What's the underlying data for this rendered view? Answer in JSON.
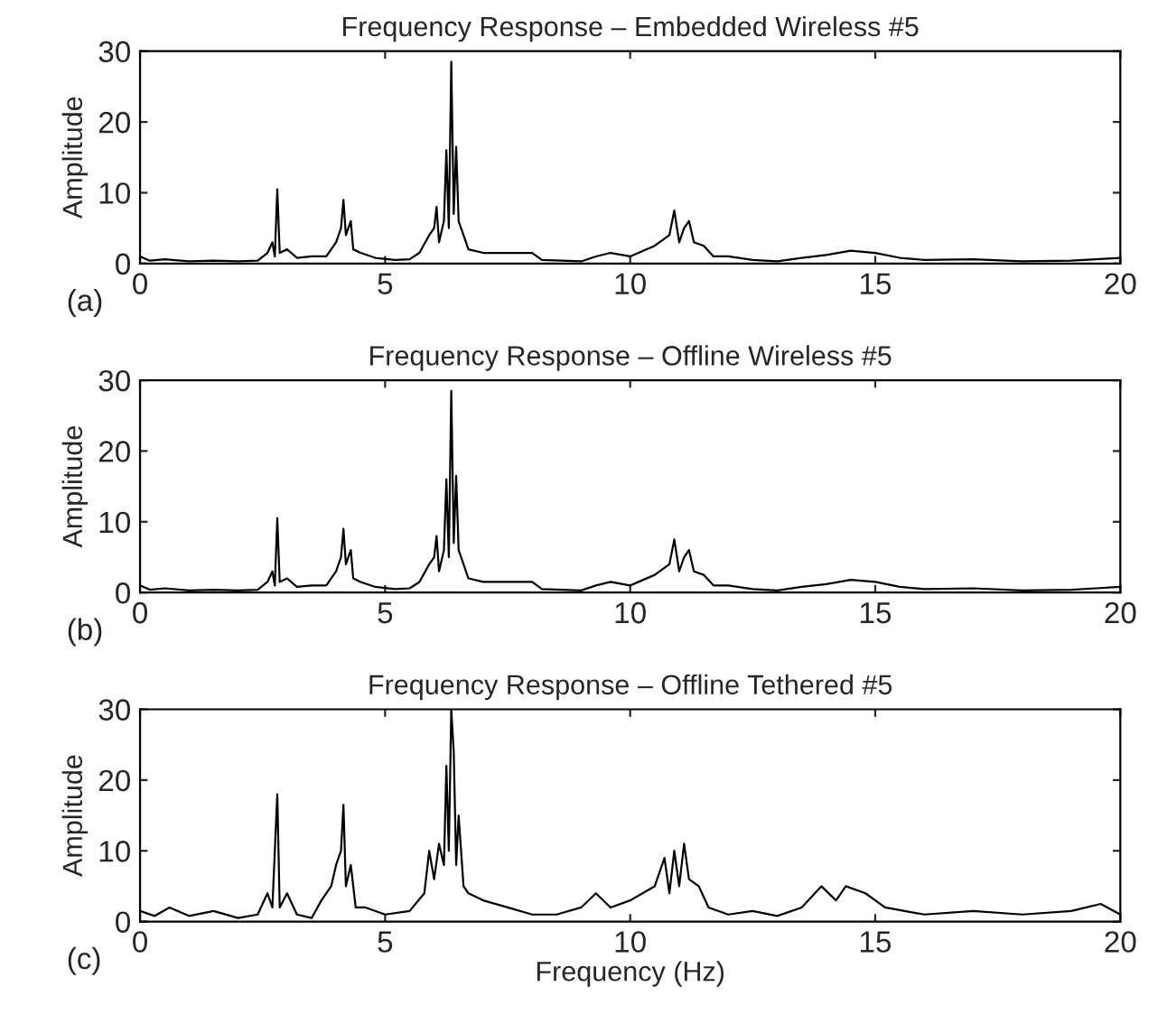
{
  "chart_data": [
    {
      "type": "line",
      "title": "Frequency Response – Embedded Wireless #5",
      "ylabel": "Amplitude",
      "annotations": [
        "(a)"
      ],
      "xlim": [
        0,
        20
      ],
      "ylim": [
        0,
        30
      ],
      "xticks": [
        0,
        5,
        10,
        15,
        20
      ],
      "yticks": [
        0,
        10,
        20,
        30
      ],
      "grid": false,
      "series": [
        {
          "color": "#000000",
          "x": [
            0,
            0.2,
            0.5,
            1,
            1.5,
            2,
            2.4,
            2.6,
            2.7,
            2.75,
            2.8,
            2.85,
            3.0,
            3.2,
            3.5,
            3.8,
            4.0,
            4.1,
            4.15,
            4.2,
            4.3,
            4.35,
            4.5,
            4.8,
            5.2,
            5.5,
            5.7,
            5.9,
            6.0,
            6.05,
            6.1,
            6.2,
            6.25,
            6.3,
            6.35,
            6.4,
            6.45,
            6.5,
            6.6,
            6.7,
            7.0,
            7.5,
            8.0,
            8.2,
            9.0,
            9.3,
            9.6,
            10.0,
            10.5,
            10.8,
            10.9,
            11.0,
            11.1,
            11.2,
            11.3,
            11.5,
            11.7,
            12.0,
            12.5,
            13.0,
            13.5,
            14.0,
            14.5,
            15.0,
            15.5,
            16.0,
            17.0,
            18.0,
            19.0,
            19.5,
            20.0
          ],
          "values": [
            1,
            0.4,
            0.6,
            0.3,
            0.4,
            0.3,
            0.4,
            1.5,
            3,
            1,
            10.5,
            1.5,
            2,
            0.8,
            1,
            1,
            3,
            5,
            9,
            4,
            6,
            2,
            1.5,
            0.8,
            0.5,
            0.6,
            1.5,
            4,
            5,
            8,
            3,
            6,
            16,
            5,
            28.5,
            7,
            16.5,
            6,
            4,
            2,
            1.5,
            1.5,
            1.5,
            0.5,
            0.3,
            1,
            1.5,
            1,
            2.5,
            4,
            7.5,
            3,
            5,
            6,
            3,
            2.5,
            1,
            1,
            0.5,
            0.3,
            0.8,
            1.2,
            1.8,
            1.5,
            0.8,
            0.5,
            0.6,
            0.3,
            0.4,
            0.6,
            0.8
          ]
        }
      ]
    },
    {
      "type": "line",
      "title": "Frequency Response – Offline Wireless #5",
      "ylabel": "Amplitude",
      "annotations": [
        "(b)"
      ],
      "xlim": [
        0,
        20
      ],
      "ylim": [
        0,
        30
      ],
      "xticks": [
        0,
        5,
        10,
        15,
        20
      ],
      "yticks": [
        0,
        10,
        20,
        30
      ],
      "grid": false,
      "series": [
        {
          "color": "#000000",
          "x": [
            0,
            0.2,
            0.5,
            1,
            1.5,
            2,
            2.4,
            2.6,
            2.7,
            2.75,
            2.8,
            2.85,
            3.0,
            3.2,
            3.5,
            3.8,
            4.0,
            4.1,
            4.15,
            4.2,
            4.3,
            4.35,
            4.5,
            4.8,
            5.2,
            5.5,
            5.7,
            5.9,
            6.0,
            6.05,
            6.1,
            6.2,
            6.25,
            6.3,
            6.35,
            6.4,
            6.45,
            6.5,
            6.6,
            6.7,
            7.0,
            7.5,
            8.0,
            8.2,
            9.0,
            9.3,
            9.6,
            10.0,
            10.5,
            10.8,
            10.9,
            11.0,
            11.1,
            11.2,
            11.3,
            11.5,
            11.7,
            12.0,
            12.5,
            13.0,
            13.5,
            14.0,
            14.5,
            15.0,
            15.5,
            16.0,
            17.0,
            18.0,
            19.0,
            19.5,
            20.0
          ],
          "values": [
            1,
            0.4,
            0.6,
            0.3,
            0.4,
            0.3,
            0.4,
            1.5,
            3,
            1,
            10.5,
            1.5,
            2,
            0.8,
            1,
            1,
            3,
            5,
            9,
            4,
            6,
            2,
            1.5,
            0.8,
            0.5,
            0.6,
            1.5,
            4,
            5,
            8,
            3,
            6,
            16,
            5,
            28.5,
            7,
            16.5,
            6,
            4,
            2,
            1.5,
            1.5,
            1.5,
            0.5,
            0.3,
            1,
            1.5,
            1,
            2.5,
            4,
            7.5,
            3,
            5,
            6,
            3,
            2.5,
            1,
            1,
            0.5,
            0.3,
            0.8,
            1.2,
            1.8,
            1.5,
            0.8,
            0.5,
            0.6,
            0.3,
            0.4,
            0.6,
            0.8
          ]
        }
      ]
    },
    {
      "type": "line",
      "title": "Frequency Response – Offline Tethered #5",
      "xlabel": "Frequency (Hz)",
      "ylabel": "Amplitude",
      "annotations": [
        "(c)"
      ],
      "xlim": [
        0,
        20
      ],
      "ylim": [
        0,
        30
      ],
      "xticks": [
        0,
        5,
        10,
        15,
        20
      ],
      "yticks": [
        0,
        10,
        20,
        30
      ],
      "grid": false,
      "series": [
        {
          "color": "#000000",
          "x": [
            0,
            0.3,
            0.6,
            1,
            1.5,
            2,
            2.4,
            2.6,
            2.7,
            2.8,
            2.85,
            3.0,
            3.2,
            3.5,
            3.7,
            3.9,
            4.0,
            4.1,
            4.15,
            4.2,
            4.3,
            4.4,
            4.6,
            5.0,
            5.5,
            5.8,
            5.9,
            6.0,
            6.1,
            6.2,
            6.25,
            6.3,
            6.35,
            6.4,
            6.45,
            6.5,
            6.6,
            6.7,
            7.0,
            7.5,
            8.0,
            8.5,
            9.0,
            9.3,
            9.6,
            10.0,
            10.5,
            10.7,
            10.8,
            10.9,
            11.0,
            11.1,
            11.2,
            11.4,
            11.6,
            12.0,
            12.5,
            13.0,
            13.5,
            13.9,
            14.2,
            14.4,
            14.8,
            15.2,
            16.0,
            17.0,
            18.0,
            19.0,
            19.6,
            20.0
          ],
          "values": [
            1.5,
            0.8,
            2,
            0.8,
            1.5,
            0.5,
            1,
            4,
            2,
            18,
            2,
            4,
            1,
            0.5,
            3,
            5,
            8,
            10,
            16.5,
            5,
            8,
            2,
            2,
            1,
            1.5,
            4,
            10,
            6,
            11,
            8,
            22,
            10,
            30,
            24,
            8,
            15,
            5,
            4,
            3,
            2,
            1,
            1,
            2,
            4,
            2,
            3,
            5,
            9,
            4,
            10,
            5,
            11,
            6,
            5,
            2,
            1,
            1.5,
            0.8,
            2,
            5,
            3,
            5,
            4,
            2,
            1,
            1.5,
            1,
            1.5,
            2.5,
            1
          ]
        }
      ]
    }
  ]
}
